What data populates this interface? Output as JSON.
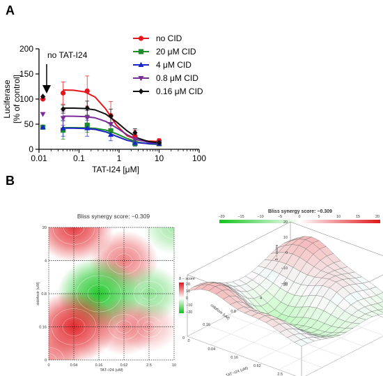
{
  "panels": {
    "a": "A",
    "b": "B"
  },
  "chart_data": [
    {
      "type": "line",
      "xlabel": "TAT-I24 [μM]",
      "ylabel_lines": [
        "Luciferase",
        "[% of control]"
      ],
      "xscale": "log",
      "xlim": [
        0.01,
        100
      ],
      "ylim": [
        0,
        200
      ],
      "x_ticks": [
        0.01,
        0.1,
        1,
        10,
        100
      ],
      "x_tick_labels": [
        "0.01",
        "0.1",
        "1",
        "10",
        "100"
      ],
      "y_ticks": [
        0,
        50,
        100,
        150,
        200
      ],
      "y_tick_labels": [
        "0",
        "50",
        "100",
        "150",
        "200"
      ],
      "annotation": "no TAT-I24",
      "x": [
        0.04,
        0.16,
        0.62,
        2.5,
        10
      ],
      "series": [
        {
          "name": "no CID",
          "color": "#e8141b",
          "marker": "circle",
          "no_tat": 100,
          "values": [
            112,
            116,
            67,
            26,
            17
          ],
          "errors": [
            22,
            30,
            28,
            12,
            4
          ],
          "fit": [
            118,
            117.5,
            114.5,
            104,
            80,
            48,
            27,
            18.5,
            16.2,
            15.5
          ]
        },
        {
          "name": "20 μM CID",
          "color": "#1f8c2a",
          "marker": "square",
          "no_tat": 44,
          "values": [
            38,
            48,
            37,
            12,
            11
          ],
          "errors": [
            18,
            14,
            10,
            6,
            3
          ],
          "fit": [
            43,
            43,
            42.7,
            41.6,
            38.2,
            31.0,
            21.4,
            14.3,
            10.9,
            9.6
          ]
        },
        {
          "name": "4 μM CID",
          "color": "#1c25c9",
          "marker": "triangle",
          "no_tat": 44,
          "values": [
            42,
            42,
            29,
            13,
            11
          ],
          "errors": [
            16,
            16,
            12,
            6,
            3
          ],
          "fit": [
            42,
            41.9,
            41.4,
            39.6,
            34.6,
            26.0,
            17.8,
            13.2,
            11.2,
            10.5
          ]
        },
        {
          "name": "0.8 μM CID",
          "color": "#7b2d9a",
          "marker": "triangle-down",
          "no_tat": 70,
          "values": [
            62,
            63,
            50,
            20,
            13
          ],
          "errors": [
            14,
            14,
            14,
            10,
            3
          ],
          "fit": [
            66,
            65.9,
            65.2,
            62.6,
            55.4,
            42.9,
            29.0,
            18.9,
            14.0,
            12.2
          ]
        },
        {
          "name": "0.16 μM CID",
          "color": "#111111",
          "marker": "diamond",
          "no_tat": 105,
          "values": [
            80,
            82,
            66,
            33,
            13
          ],
          "errors": [
            8,
            14,
            14,
            8,
            3
          ],
          "fit": [
            82,
            81.9,
            81.2,
            78.5,
            70.0,
            54.6,
            36.6,
            22.4,
            15.4,
            12.8
          ]
        }
      ]
    },
    {
      "type": "heatmap",
      "title": "Bliss synergy score: −0.309",
      "xlabel": "TAT−I24 (uM)",
      "ylabel": "cidofovir (uM)",
      "x_tick_labels": [
        "0",
        "0.04",
        "0.16",
        "0.62",
        "2.5",
        "10"
      ],
      "y_tick_labels": [
        "0",
        "0.16",
        "0.8",
        "4",
        "20"
      ],
      "colorbar_label": "δ − score",
      "colorbar_ticks": [
        "20",
        "10",
        "0",
        "−10",
        "−20"
      ],
      "colorbar_range": [
        -20,
        20
      ],
      "colors": {
        "positive": "#e0161b",
        "negative": "#13c41c",
        "neutral": "#ffffff"
      },
      "blobs": [
        {
          "x": 0.04,
          "y": 20,
          "value": 18
        },
        {
          "x": 0.62,
          "y": 4,
          "value": 12
        },
        {
          "x": 0.16,
          "y": 0.8,
          "value": -20
        },
        {
          "x": 2.5,
          "y": 0.8,
          "value": -10
        },
        {
          "x": 10,
          "y": 20,
          "value": -8
        },
        {
          "x": 0.04,
          "y": 0.16,
          "value": 20
        },
        {
          "x": 0.62,
          "y": 0.16,
          "value": 10
        },
        {
          "x": 2.5,
          "y": 0.16,
          "value": 6
        },
        {
          "x": 0,
          "y": 0,
          "value": 10
        }
      ]
    },
    {
      "type": "surface",
      "title": "Bliss synergy score: −0.309",
      "colorbar_ticks": [
        "−20",
        "−15",
        "−10",
        "−5",
        "0",
        "5",
        "10",
        "15",
        "20"
      ],
      "z_label": "δ − score",
      "z_ticks": [
        "−20",
        "−10",
        "0",
        "10",
        "20"
      ],
      "x_axis_label": "cidofovir (uM)",
      "x_axis_ticks": [
        "20",
        "4",
        "0.8",
        "0.16",
        "0"
      ],
      "y_axis_label": "TAT−I24 (uM)",
      "y_axis_ticks": [
        "0",
        "0.04",
        "0.16",
        "0.62",
        "2.5",
        "10"
      ]
    }
  ]
}
